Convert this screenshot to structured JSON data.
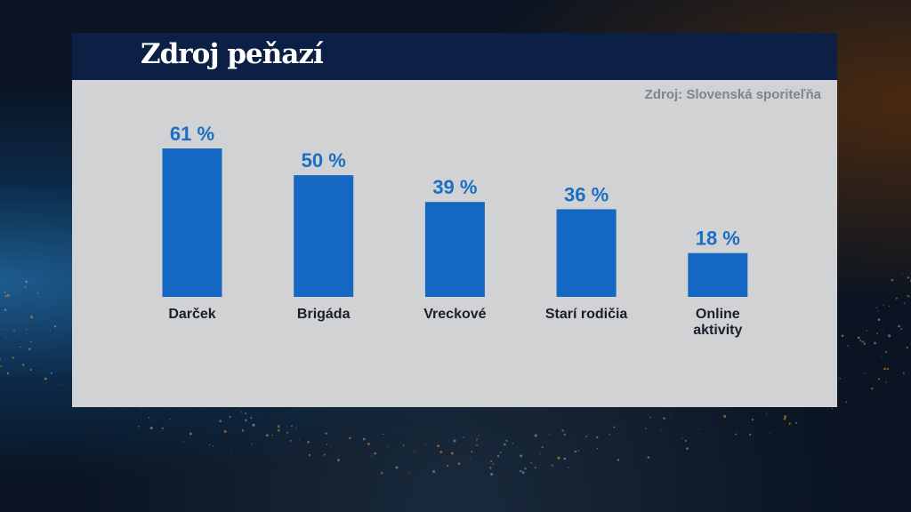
{
  "header": {
    "title": "Zdroj peňazí"
  },
  "source": "Zdroj: Slovenská sporiteľňa",
  "colors": {
    "bar": "#1467c2",
    "value": "#1a6fc4",
    "header": "#0c1f45",
    "panel": "#d1d2d4"
  },
  "chart_data": {
    "type": "bar",
    "title": "Zdroj peňazí",
    "categories": [
      [
        "Darček"
      ],
      [
        "Brigáda"
      ],
      [
        "Vreckové"
      ],
      [
        "Starí rodičia"
      ],
      [
        "Online",
        "aktivity"
      ]
    ],
    "values": [
      61,
      50,
      39,
      36,
      18
    ],
    "value_labels": [
      "61 %",
      "50 %",
      "39 %",
      "36 %",
      "18 %"
    ],
    "unit": "%",
    "ylim": [
      0,
      61
    ],
    "grid": false,
    "legend": "none"
  }
}
